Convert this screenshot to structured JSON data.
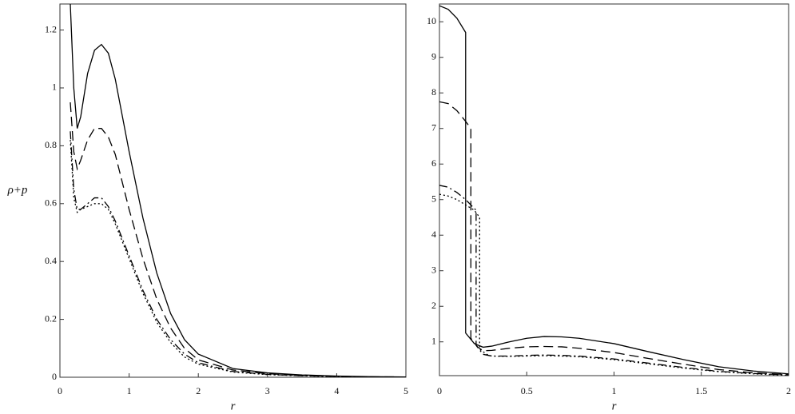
{
  "chart_data": [
    {
      "type": "line",
      "y_label": "ρ+p",
      "x_label": "r",
      "x": [
        0.15,
        0.2,
        0.25,
        0.3,
        0.4,
        0.5,
        0.6,
        0.7,
        0.8,
        1,
        1.2,
        1.4,
        1.6,
        1.8,
        2,
        2.5,
        3,
        3.5,
        4,
        4.5,
        5
      ],
      "xlim": [
        0,
        5
      ],
      "ylim": [
        0,
        1.29
      ],
      "xticks": [
        0,
        1,
        2,
        3,
        4,
        5
      ],
      "yticks": [
        0,
        0.2,
        0.4,
        0.6,
        0.8,
        1,
        1.2
      ],
      "series": [
        {
          "color": "#000000",
          "dash": "solid",
          "values": [
            1.29,
            1.0,
            0.86,
            0.9,
            1.05,
            1.13,
            1.15,
            1.12,
            1.03,
            0.78,
            0.55,
            0.36,
            0.22,
            0.13,
            0.08,
            0.03,
            0.015,
            0.008,
            0.004,
            0.002,
            0.001
          ]
        },
        {
          "color": "#000000",
          "dash": "dashed",
          "values": [
            0.95,
            0.78,
            0.72,
            0.75,
            0.82,
            0.86,
            0.86,
            0.83,
            0.77,
            0.58,
            0.41,
            0.27,
            0.17,
            0.1,
            0.06,
            0.025,
            0.012,
            0.006,
            0.003,
            0.0015,
            0.001
          ]
        },
        {
          "color": "#000000",
          "dash": "dashdot",
          "values": [
            0.85,
            0.65,
            0.58,
            0.58,
            0.6,
            0.62,
            0.62,
            0.59,
            0.54,
            0.42,
            0.3,
            0.2,
            0.13,
            0.08,
            0.05,
            0.02,
            0.01,
            0.005,
            0.003,
            0.001,
            0.0005
          ]
        },
        {
          "color": "#000000",
          "dash": "dotted",
          "values": [
            0.82,
            0.62,
            0.57,
            0.58,
            0.59,
            0.6,
            0.6,
            0.58,
            0.53,
            0.41,
            0.29,
            0.19,
            0.12,
            0.07,
            0.045,
            0.018,
            0.009,
            0.005,
            0.002,
            0.001,
            0.0005
          ]
        }
      ]
    },
    {
      "type": "line",
      "x_label": "r",
      "xlim": [
        0,
        2
      ],
      "ylim": [
        0.05,
        10.5
      ],
      "xticks": [
        0,
        0.5,
        1,
        1.5,
        2
      ],
      "yticks": [
        1,
        2,
        3,
        4,
        5,
        6,
        7,
        8,
        9,
        10
      ],
      "series": [
        {
          "color": "#000000",
          "dash": "solid",
          "x": [
            0,
            0.05,
            0.1,
            0.15,
            0.15,
            0.2,
            0.25,
            0.3,
            0.4,
            0.5,
            0.6,
            0.7,
            0.8,
            1,
            1.2,
            1.4,
            1.6,
            1.8,
            2
          ],
          "values": [
            10.45,
            10.35,
            10.1,
            9.7,
            1.25,
            0.95,
            0.85,
            0.88,
            1.0,
            1.1,
            1.15,
            1.14,
            1.1,
            0.95,
            0.72,
            0.5,
            0.3,
            0.18,
            0.1
          ]
        },
        {
          "color": "#000000",
          "dash": "dashed",
          "x": [
            0,
            0.05,
            0.1,
            0.15,
            0.18,
            0.18,
            0.22,
            0.25,
            0.3,
            0.4,
            0.5,
            0.6,
            0.7,
            0.8,
            1,
            1.2,
            1.4,
            1.6,
            1.8,
            2
          ],
          "values": [
            7.75,
            7.7,
            7.5,
            7.2,
            7.0,
            1.1,
            0.85,
            0.75,
            0.76,
            0.82,
            0.86,
            0.87,
            0.86,
            0.82,
            0.7,
            0.53,
            0.37,
            0.22,
            0.13,
            0.08
          ]
        },
        {
          "color": "#000000",
          "dash": "dashdot",
          "x": [
            0,
            0.05,
            0.1,
            0.15,
            0.21,
            0.21,
            0.25,
            0.3,
            0.4,
            0.5,
            0.6,
            0.7,
            0.8,
            1,
            1.2,
            1.4,
            1.6,
            1.8,
            2
          ],
          "values": [
            5.4,
            5.35,
            5.2,
            5.0,
            4.7,
            0.9,
            0.65,
            0.6,
            0.6,
            0.62,
            0.63,
            0.62,
            0.6,
            0.52,
            0.4,
            0.28,
            0.17,
            0.11,
            0.07
          ]
        },
        {
          "color": "#000000",
          "dash": "dotted",
          "x": [
            0,
            0.05,
            0.1,
            0.15,
            0.2,
            0.23,
            0.23,
            0.27,
            0.3,
            0.4,
            0.5,
            0.6,
            0.7,
            0.8,
            1,
            1.2,
            1.4,
            1.6,
            1.8,
            2
          ],
          "values": [
            5.15,
            5.1,
            5.0,
            4.85,
            4.7,
            4.5,
            0.8,
            0.65,
            0.6,
            0.59,
            0.6,
            0.61,
            0.6,
            0.58,
            0.5,
            0.38,
            0.26,
            0.16,
            0.1,
            0.06
          ]
        }
      ]
    }
  ]
}
